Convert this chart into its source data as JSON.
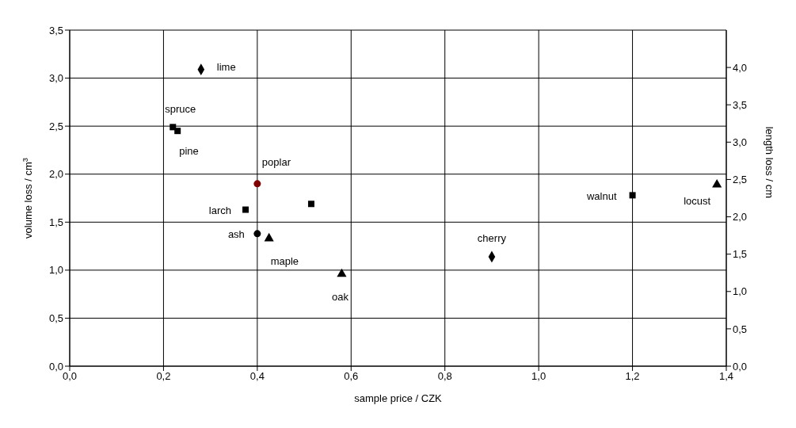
{
  "chart_data": {
    "type": "scatter",
    "xlabel": "sample price / CZK",
    "ylabel": "volume loss / cm$^{3}$",
    "y2label": "length loss / cm",
    "xlim": [
      0,
      1.4
    ],
    "xticks": [
      {
        "value": 0,
        "label": "0,0"
      },
      {
        "value": 0.2,
        "label": "0,2"
      },
      {
        "value": 0.4,
        "label": "0,4"
      },
      {
        "value": 0.6,
        "label": "0,6"
      },
      {
        "value": 0.8,
        "label": "0,8"
      },
      {
        "value": 1.0,
        "label": "1,0"
      },
      {
        "value": 1.2,
        "label": "1,2"
      },
      {
        "value": 1.4,
        "label": "1,4"
      }
    ],
    "ylim": [
      0,
      3.5
    ],
    "yticks": [
      {
        "value": 0,
        "label": "0,0"
      },
      {
        "value": 0.5,
        "label": "0,5"
      },
      {
        "value": 1.0,
        "label": "1,0"
      },
      {
        "value": 1.5,
        "label": "1,5"
      },
      {
        "value": 2.0,
        "label": "2,0"
      },
      {
        "value": 2.5,
        "label": "2,5"
      },
      {
        "value": 3.0,
        "label": "3,0"
      },
      {
        "value": 3.5,
        "label": "3,5"
      }
    ],
    "y2lim": [
      0,
      4.5
    ],
    "y2ticks": [
      {
        "value": 0,
        "label": "0,0"
      },
      {
        "value": 0.5,
        "label": "0,5"
      },
      {
        "value": 1.0,
        "label": "1,0"
      },
      {
        "value": 1.5,
        "label": "1,5"
      },
      {
        "value": 2.0,
        "label": "2,0"
      },
      {
        "value": 2.5,
        "label": "2,5"
      },
      {
        "value": 3.0,
        "label": "3,0"
      },
      {
        "value": 3.5,
        "label": "3,5"
      },
      {
        "value": 4.0,
        "label": "4,0"
      }
    ],
    "grid": true,
    "legend": false,
    "series": [
      {
        "marker": "diamond",
        "color": "#000000",
        "x": [
          0.28,
          0.9
        ],
        "values": [
          3.09,
          1.14
        ]
      },
      {
        "marker": "square",
        "color": "#000000",
        "x": [
          0.22,
          0.23,
          0.375,
          0.515,
          1.2
        ],
        "values": [
          2.49,
          2.45,
          1.63,
          1.69,
          1.78
        ]
      },
      {
        "marker": "circle",
        "color": "#000000",
        "colors": [
          "#800000",
          "#000000"
        ],
        "x": [
          0.4,
          0.4
        ],
        "values": [
          1.9,
          1.38
        ]
      },
      {
        "marker": "triangle",
        "color": "#000000",
        "x": [
          0.425,
          0.58,
          1.38
        ],
        "values": [
          1.33,
          0.96,
          1.89
        ]
      }
    ],
    "annotations": [
      {
        "text": "lime",
        "x": 0.28,
        "y": 3.09
      },
      {
        "text": "spruce",
        "x": 0.22,
        "y": 2.49
      },
      {
        "text": "pine",
        "x": 0.23,
        "y": 2.45
      },
      {
        "text": "poplar",
        "x": 0.4,
        "y": 1.9
      },
      {
        "text": "larch",
        "x": 0.375,
        "y": 1.63
      },
      {
        "text": "ash",
        "x": 0.4,
        "y": 1.38
      },
      {
        "text": "maple",
        "x": 0.425,
        "y": 1.33
      },
      {
        "text": "oak",
        "x": 0.58,
        "y": 0.96
      },
      {
        "text": "cherry",
        "x": 0.9,
        "y": 1.14
      },
      {
        "text": "walnut",
        "x": 1.2,
        "y": 1.78
      },
      {
        "text": "locust",
        "x": 1.38,
        "y": 1.89
      }
    ]
  }
}
